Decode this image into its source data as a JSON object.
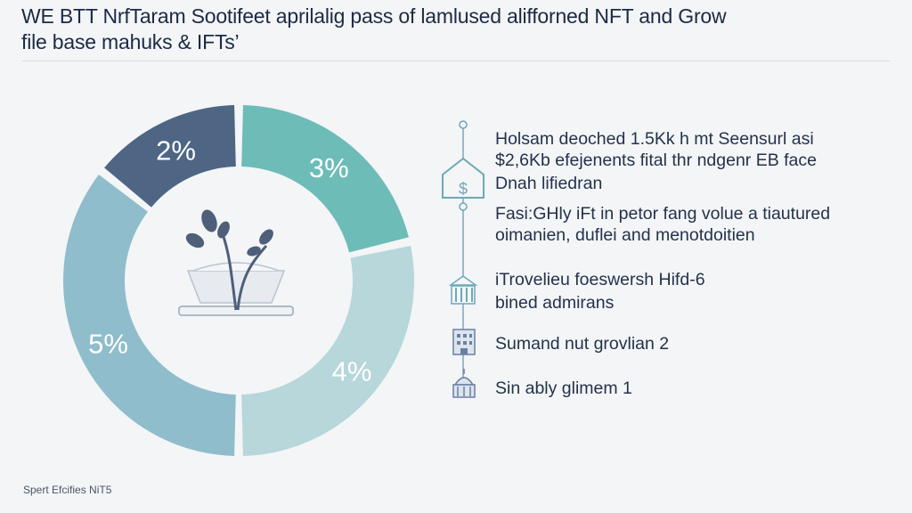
{
  "title": {
    "line1": "WE BTT NrfTaram Sootifeet aprilalig pass of lamlused alifforned NFT and Grow",
    "line2": "file base mahuks & IFTs’"
  },
  "chart_data": {
    "type": "pie",
    "variant": "donut",
    "segments": [
      {
        "label": "3%",
        "value": 3,
        "color": "#6dbcb7"
      },
      {
        "label": "4%",
        "value": 4,
        "color": "#b7d7da"
      },
      {
        "label": "5%",
        "value": 5,
        "color": "#8fbdcb"
      },
      {
        "label": "2%",
        "value": 2,
        "color": "#4e6684"
      }
    ]
  },
  "info": {
    "lines": [
      "Holsam deoched 1.5Kk h mt Seensurl asi",
      "$2,6Kb efejenents fital thr ndgenr EB face",
      "Dnah lifiedran",
      "Fasi:GHly iFt in petor fang volue a tiautured",
      "oimanien, duflei and menotdoitien",
      "iTrovelieu foeswersh Hifd-6",
      "bined admirans",
      "Sumand nut grovlian 2",
      "Sin ably glimem 1"
    ]
  },
  "icons": [
    "bank-dollar-icon",
    "government-building-icon",
    "office-building-icon",
    "capitol-dome-icon",
    "plant-bowl-icon"
  ],
  "footer": "Spert Efcifies NiT5"
}
